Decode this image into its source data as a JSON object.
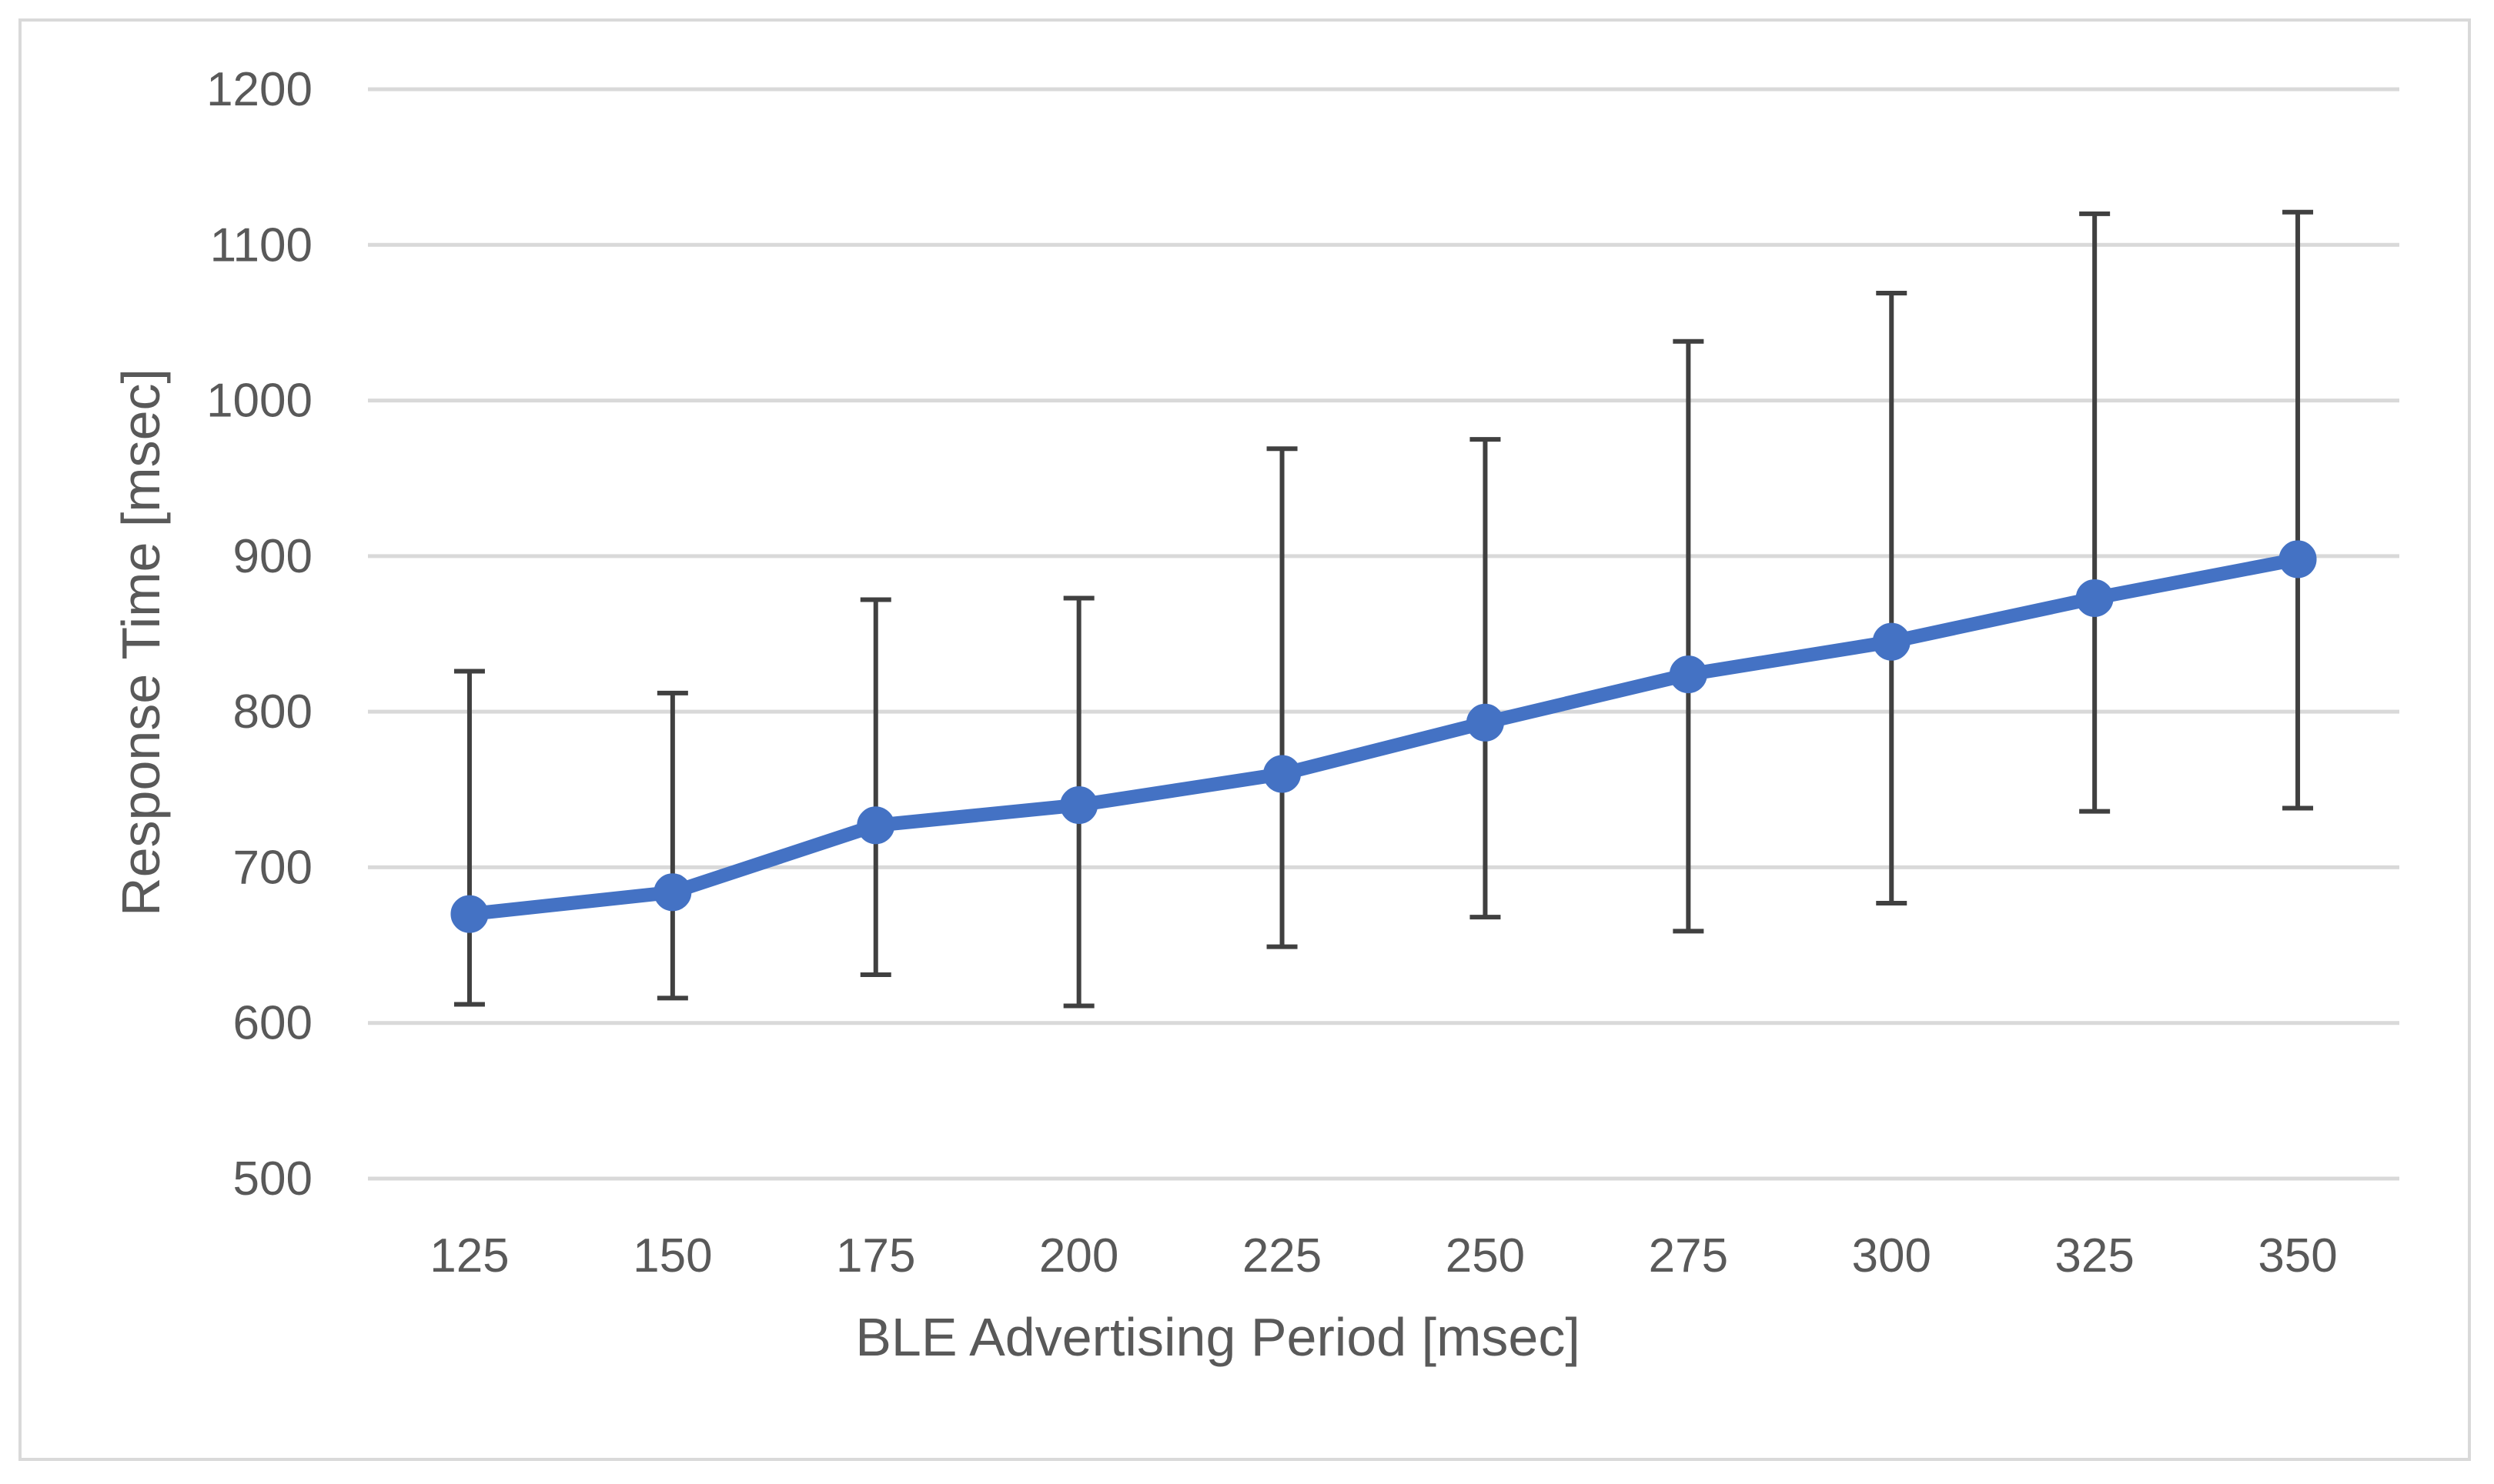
{
  "chart_data": {
    "type": "line",
    "title": "",
    "xlabel": "BLE Advertising Period [msec]",
    "ylabel": "Response Time [msec]",
    "categories": [
      "125",
      "150",
      "175",
      "200",
      "225",
      "250",
      "275",
      "300",
      "325",
      "350"
    ],
    "series": [
      {
        "values": [
          670,
          684,
          727,
          740,
          760,
          793,
          824,
          845,
          873,
          898
        ],
        "error_low": [
          612,
          616,
          631,
          611,
          649,
          668,
          659,
          677,
          736,
          738
        ],
        "error_high": [
          826,
          812,
          872,
          873,
          969,
          975,
          1038,
          1069,
          1120,
          1121
        ]
      }
    ],
    "ylim": [
      500,
      1200
    ],
    "yticks": [
      "500",
      "600",
      "700",
      "800",
      "900",
      "1000",
      "1100",
      "1200"
    ],
    "grid": true,
    "legend": "none",
    "colors": {
      "series_line": "#4472c4",
      "error_bars": "#404040",
      "gridlines": "#d9d9d9",
      "text": "#595959",
      "frame": "#d9d9d9"
    }
  }
}
